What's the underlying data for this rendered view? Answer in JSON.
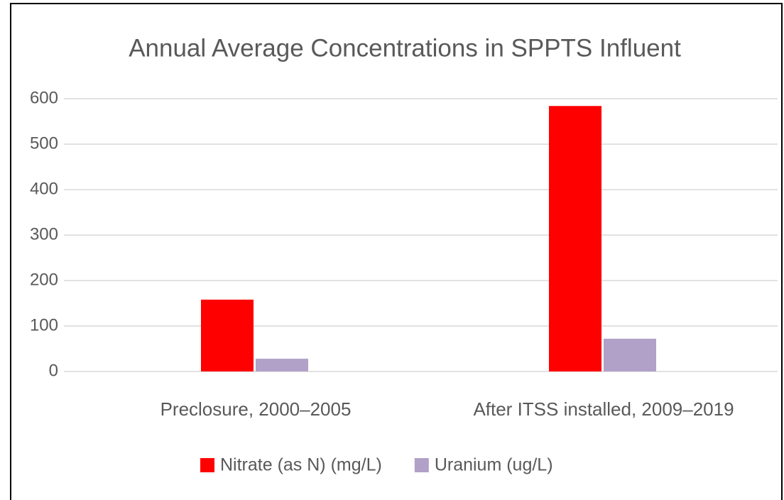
{
  "chart_data": {
    "type": "bar",
    "title": "Annual Average Concentrations in SPPTS Influent",
    "categories": [
      "Preclosure, 2000–2005",
      "After ITSS installed, 2009–2019"
    ],
    "series": [
      {
        "name": "Nitrate (as N) (mg/L)",
        "color": "#ff0000",
        "values": [
          158,
          584
        ]
      },
      {
        "name": "Uranium (ug/L)",
        "color": "#b1a0c7",
        "values": [
          28,
          72
        ]
      }
    ],
    "ylim": [
      0,
      600
    ],
    "yticks": [
      0,
      100,
      200,
      300,
      400,
      500,
      600
    ],
    "grid": true,
    "legend": "bottom"
  }
}
